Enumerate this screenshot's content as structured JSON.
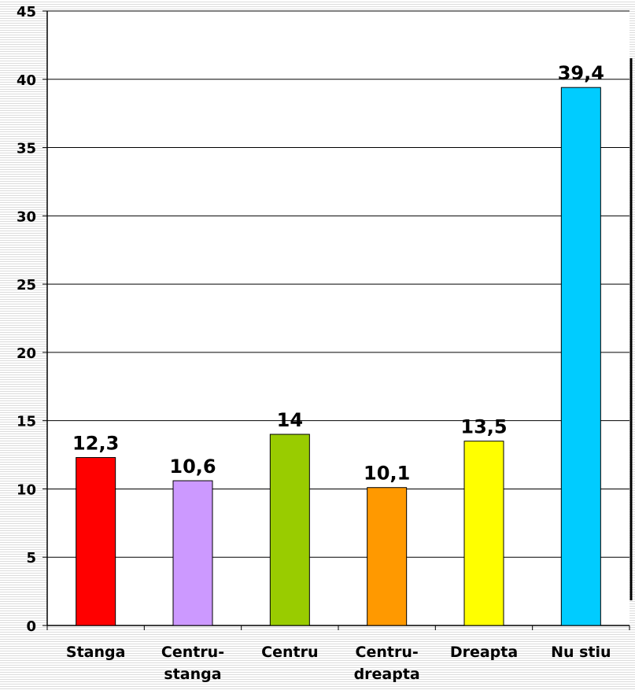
{
  "chart_data": {
    "type": "bar",
    "categories": [
      "Stanga",
      "Centru-stanga",
      "Centru",
      "Centru-dreapta",
      "Dreapta",
      "Nu stiu"
    ],
    "category_lines": [
      [
        "Stanga"
      ],
      [
        "Centru-",
        "stanga"
      ],
      [
        "Centru"
      ],
      [
        "Centru-",
        "dreapta"
      ],
      [
        "Dreapta"
      ],
      [
        "Nu stiu"
      ]
    ],
    "values": [
      12.3,
      10.6,
      14,
      10.1,
      13.5,
      39.4
    ],
    "value_labels": [
      "12,3",
      "10,6",
      "14",
      "10,1",
      "13,5",
      "39,4"
    ],
    "bar_colors": [
      "#ff0000",
      "#cc99ff",
      "#99cc00",
      "#ff9900",
      "#ffff00",
      "#00ccff"
    ],
    "ylim": [
      0,
      45
    ],
    "yticks": [
      0,
      5,
      10,
      15,
      20,
      25,
      30,
      35,
      40,
      45
    ],
    "grid": true,
    "title": "",
    "xlabel": "",
    "ylabel": ""
  }
}
